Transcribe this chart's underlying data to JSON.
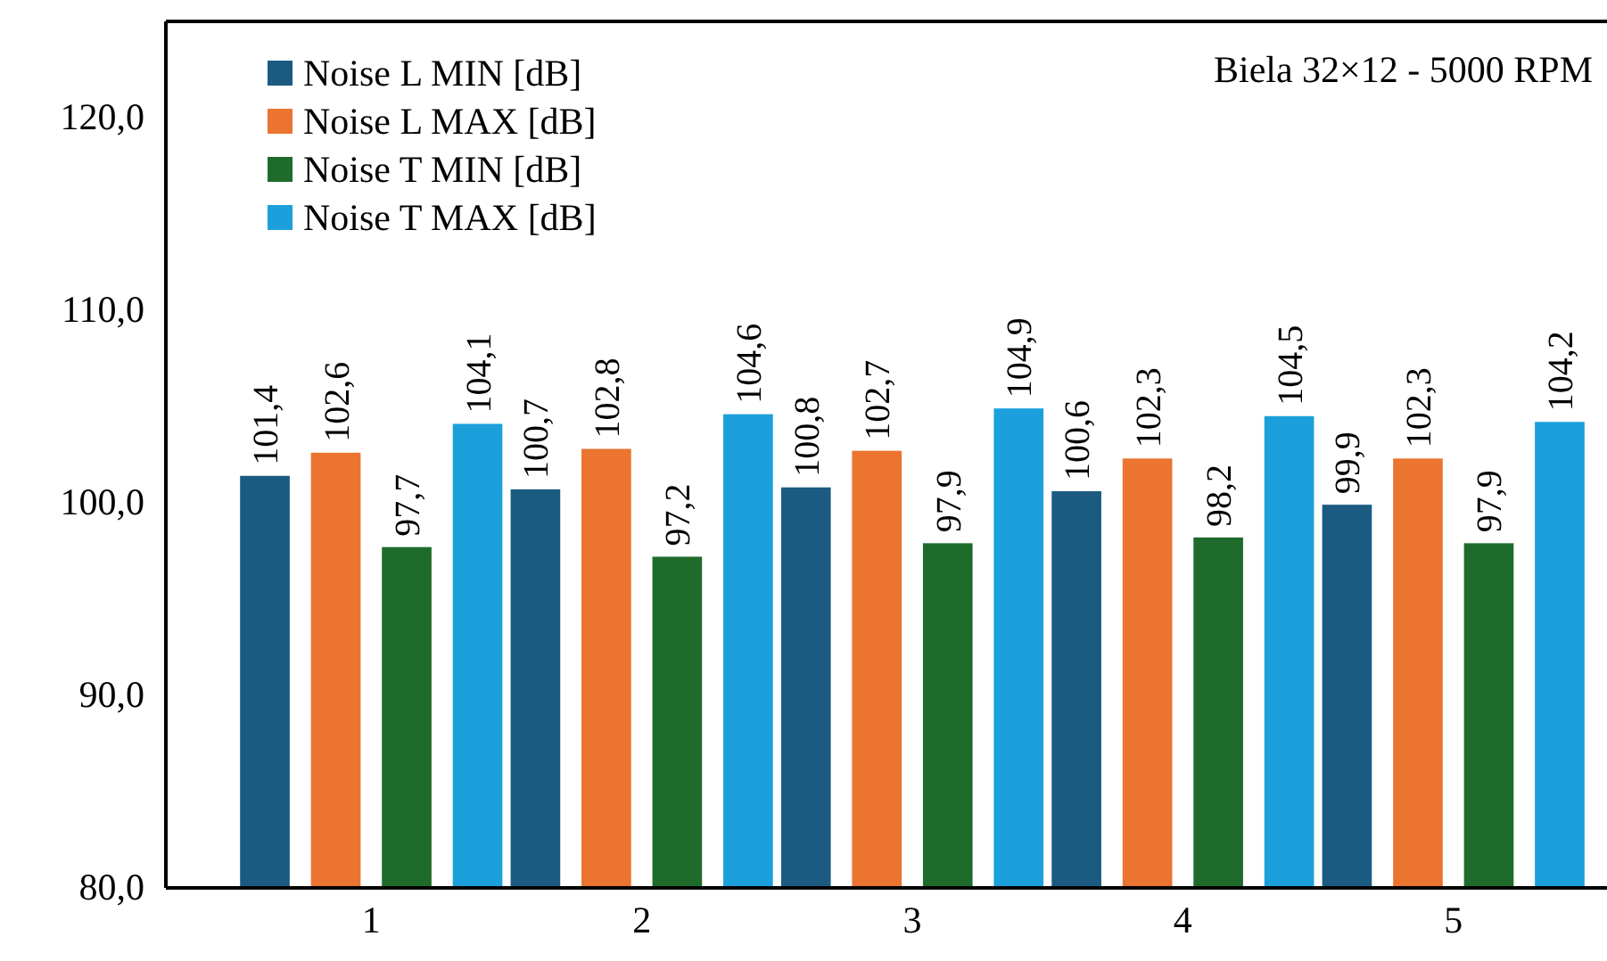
{
  "chart_data": {
    "type": "bar",
    "categories": [
      "1",
      "2",
      "3",
      "4",
      "5"
    ],
    "series": [
      {
        "name": "Noise L MIN [dB]",
        "color": "#1b5b82",
        "values": [
          101.4,
          100.7,
          100.8,
          100.6,
          99.9
        ],
        "value_labels": [
          "101,4",
          "100,7",
          "100,8",
          "100,6",
          "99,9"
        ]
      },
      {
        "name": "Noise L MAX [dB]",
        "color": "#ea7430",
        "values": [
          102.6,
          102.8,
          102.7,
          102.3,
          102.3
        ],
        "value_labels": [
          "102,6",
          "102,8",
          "102,7",
          "102,3",
          "102,3"
        ]
      },
      {
        "name": "Noise T MIN [dB]",
        "color": "#1f6b2b",
        "values": [
          97.7,
          97.2,
          97.9,
          98.2,
          97.9
        ],
        "value_labels": [
          "97,7",
          "97,2",
          "97,9",
          "98,2",
          "97,9"
        ]
      },
      {
        "name": "Noise T MAX [dB]",
        "color": "#1ba0dc",
        "values": [
          104.1,
          104.6,
          104.9,
          104.5,
          104.2
        ],
        "value_labels": [
          "104,1",
          "104,6",
          "104,9",
          "104,5",
          "104,2"
        ]
      }
    ],
    "ylim": [
      80,
      125
    ],
    "yticks": [
      {
        "value": 80,
        "label": "80,0"
      },
      {
        "value": 90,
        "label": "90,0"
      },
      {
        "value": 100,
        "label": "100,0"
      },
      {
        "value": 110,
        "label": "110,0"
      },
      {
        "value": 120,
        "label": "120,0"
      }
    ],
    "grid": false,
    "legend": "top left",
    "annotations": [
      "Biela 32×12 - 5000 RPM"
    ]
  }
}
